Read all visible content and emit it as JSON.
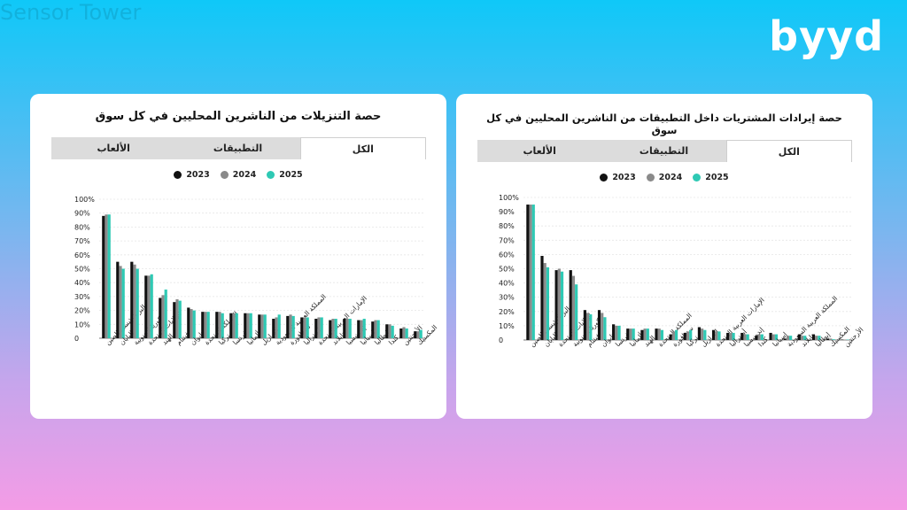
{
  "brand": {
    "logo_text": "byyd"
  },
  "colors": {
    "series": [
      "#111111",
      "#8a8a8a",
      "#2ec9b4"
    ]
  },
  "watermark": "Sensor Tower",
  "chart_data": [
    {
      "type": "bar",
      "title": "حصة التنزيلات من الناشرين المحليين في كل سوق",
      "tabs": [
        "الكل",
        "التطبيقات",
        "الألعاب"
      ],
      "active_tab": "الكل",
      "legend": [
        "2023",
        "2024",
        "2025"
      ],
      "yticks": [
        "0",
        "10%",
        "20%",
        "30%",
        "40%",
        "50%",
        "60%",
        "70%",
        "80%",
        "90%",
        "100%"
      ],
      "ylim": [
        0,
        100
      ],
      "categories": [
        "البر الرئيسي للصين",
        "اليابان",
        "كوريا الجنوبية",
        "الولايات المتحدة",
        "الهند",
        "فيتنام",
        "تايوان",
        "المملكة المتحدة",
        "تركيا",
        "فرنسا",
        "ألمانيا",
        "البرازيل",
        "المملكة العربية السعودية",
        "سنغافورة",
        "أستراليا",
        "الإمارات العربية المتحدة",
        "تايلاند",
        "إندونيسيا",
        "إسبانيا",
        "إيطاليا",
        "كندا",
        "الأرجنتين",
        "المكسيك"
      ],
      "series": [
        {
          "name": "2023",
          "values": [
            88,
            55,
            55,
            45,
            29,
            26,
            22,
            19,
            19,
            18,
            18,
            17,
            14,
            16,
            15,
            14,
            13,
            14,
            13,
            12,
            10,
            7,
            5
          ]
        },
        {
          "name": "2024",
          "values": [
            89,
            52,
            53,
            45,
            31,
            28,
            21,
            19,
            19,
            18,
            18,
            17,
            15,
            17,
            15,
            15,
            14,
            14,
            13,
            13,
            10,
            8,
            5
          ]
        },
        {
          "name": "2025",
          "values": [
            89,
            50,
            50,
            46,
            35,
            27,
            20,
            19,
            18,
            18,
            18,
            17,
            17,
            16,
            15,
            15,
            14,
            14,
            14,
            13,
            9,
            7,
            6
          ]
        }
      ]
    },
    {
      "type": "bar",
      "title": "حصة إيرادات المشتريات داخل التطبيقات من الناشرين المحليين في كل سوق",
      "tabs": [
        "الكل",
        "التطبيقات",
        "الألعاب"
      ],
      "active_tab": "الكل",
      "legend": [
        "2023",
        "2024",
        "2025"
      ],
      "yticks": [
        "0",
        "10%",
        "20%",
        "30%",
        "40%",
        "50%",
        "60%",
        "70%",
        "80%",
        "90%",
        "100%"
      ],
      "ylim": [
        0,
        100
      ],
      "categories": [
        "البر الرئيسي للصين",
        "اليابان",
        "الولايات المتحدة",
        "كوريا الجنوبية",
        "فيتنام",
        "تايوان",
        "فرنسا",
        "ألمانيا",
        "الهند",
        "المملكة المتحدة",
        "سنغافورة",
        "تركيا",
        "البرازيل",
        "الإمارات العربية المتحدة",
        "أستراليا",
        "إندونيسيا",
        "كندا",
        "إسبانيا",
        "المملكة العربية السعودية",
        "تايلاند",
        "إيطاليا",
        "المكسيك",
        "الأرجنتين"
      ],
      "series": [
        {
          "name": "2023",
          "values": [
            95,
            59,
            49,
            49,
            21,
            21,
            11,
            8,
            7,
            8,
            4,
            5,
            9,
            7,
            5,
            5,
            3,
            5,
            1,
            4,
            4,
            1,
            0.3
          ]
        },
        {
          "name": "2024",
          "values": [
            95,
            54,
            50,
            45,
            19,
            19,
            10,
            8,
            8,
            8,
            6,
            6,
            8,
            6,
            5,
            4,
            4,
            4,
            3,
            3,
            3,
            1,
            0.3
          ]
        },
        {
          "name": "2025",
          "values": [
            95,
            51,
            48,
            39,
            18,
            16,
            10,
            8,
            8,
            7,
            7,
            7,
            7,
            6,
            5,
            4,
            4,
            4,
            3,
            3,
            3,
            0.5,
            0.3
          ]
        }
      ]
    }
  ]
}
